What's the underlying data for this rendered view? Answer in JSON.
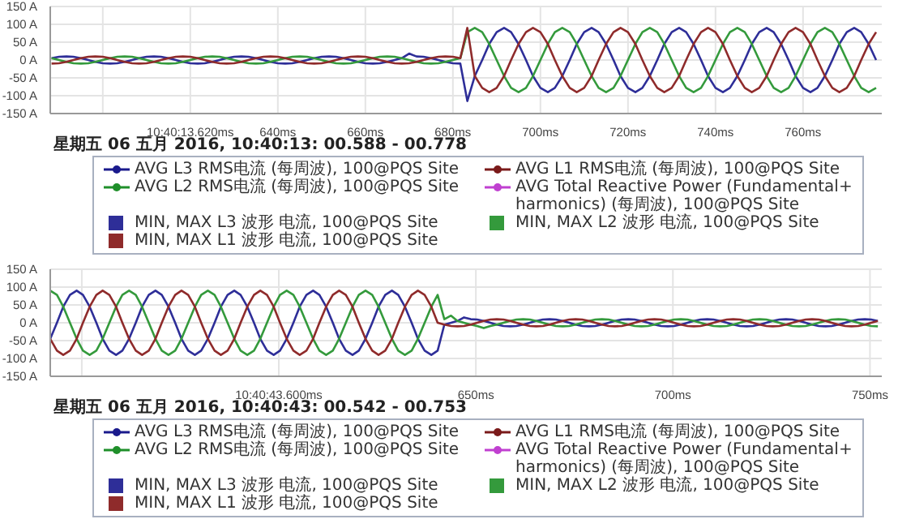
{
  "chart_data": [
    {
      "type": "line",
      "subtitle": "星期五 06 五月 2016, 10:40:13: 00.588 - 00.778",
      "xlim": [
        588,
        778
      ],
      "xticks": [
        {
          "value": 600,
          "label": null
        },
        {
          "value": 620,
          "label": "10:40:13.620ms"
        },
        {
          "value": 640,
          "label": "640ms"
        },
        {
          "value": 660,
          "label": "660ms"
        },
        {
          "value": 680,
          "label": "680ms"
        },
        {
          "value": 700,
          "label": "700ms"
        },
        {
          "value": 720,
          "label": "720ms"
        },
        {
          "value": 740,
          "label": "740ms"
        },
        {
          "value": 760,
          "label": "760ms"
        }
      ],
      "ylim": [
        -150,
        150
      ],
      "yticks": [
        {
          "value": -150,
          "label": "-150 A"
        },
        {
          "value": -100,
          "label": "-100 A"
        },
        {
          "value": -50,
          "label": "-50 A"
        },
        {
          "value": 0,
          "label": "0 A"
        },
        {
          "value": 50,
          "label": "50 A"
        },
        {
          "value": 100,
          "label": "100 A"
        },
        {
          "value": 150,
          "label": "150 A"
        }
      ],
      "grid": true,
      "legend": "bottom",
      "x": [
        588.3,
        590,
        591.7,
        593.3,
        595,
        596.7,
        598.3,
        600,
        601.7,
        603.3,
        605,
        606.7,
        608.3,
        610,
        611.7,
        613.3,
        615,
        616.7,
        618.3,
        620,
        621.7,
        623.3,
        625,
        626.7,
        628.3,
        630,
        631.7,
        633.3,
        635,
        636.7,
        638.3,
        640,
        641.7,
        643.3,
        645,
        646.7,
        648.3,
        650,
        651.7,
        653.3,
        655,
        656.7,
        658.3,
        660,
        661.7,
        663.3,
        665,
        666.7,
        668.3,
        670,
        671.7,
        673.3,
        675,
        676.7,
        678.3,
        680,
        681.7,
        683.3,
        685,
        686.7,
        688.3,
        690,
        691.7,
        693.3,
        695,
        696.7,
        698.3,
        700,
        701.7,
        703.3,
        705,
        706.7,
        708.3,
        710,
        711.7,
        713.3,
        715,
        716.7,
        718.3,
        720,
        721.7,
        723.3,
        725,
        726.7,
        728.3,
        730,
        731.7,
        733.3,
        735,
        736.7,
        738.3,
        740,
        741.7,
        743.3,
        745,
        746.7,
        748.3,
        750,
        751.7,
        753.3,
        755,
        756.7,
        758.3,
        760,
        761.7,
        763.3,
        765,
        766.7,
        768.3,
        770,
        771.7,
        773.3,
        775,
        776.7
      ],
      "series": [
        {
          "name": "AVG L3 RMS电流 (每周波), 100@PQS Site",
          "color": "#1a1a8c",
          "marker": "circle",
          "values": [
            null,
            null,
            null,
            null,
            null,
            null,
            null,
            null,
            null,
            null,
            null,
            null,
            null,
            null,
            null,
            null,
            null,
            null,
            null,
            null,
            null,
            null,
            null,
            null,
            null,
            null,
            null,
            null,
            null,
            null,
            null,
            null,
            null,
            null,
            null,
            null,
            null,
            null,
            null,
            null,
            null,
            null,
            null,
            null,
            null,
            null,
            null,
            null,
            null,
            null,
            null,
            null,
            null,
            null,
            null,
            null,
            null,
            null,
            null,
            null,
            null,
            null,
            null,
            null,
            null,
            null,
            null,
            null,
            null,
            null,
            null,
            null,
            null,
            null,
            null,
            null,
            null,
            null,
            null,
            null,
            null,
            null,
            null,
            null,
            null,
            null,
            null,
            null,
            null,
            null,
            null,
            null,
            null,
            null,
            null,
            null,
            null,
            null,
            null,
            null,
            null,
            null,
            null,
            null,
            null,
            null,
            null,
            null,
            null,
            null,
            null,
            null,
            null,
            null
          ]
        },
        {
          "name": "AVG L1 RMS电流 (每周波), 100@PQS Site",
          "color": "#7a1a1a",
          "marker": "circle",
          "values": [
            null,
            null,
            null,
            null,
            null,
            null,
            null,
            null,
            null,
            null,
            null,
            null,
            null,
            null,
            null,
            null,
            null,
            null,
            null,
            null,
            null,
            null,
            null,
            null,
            null,
            null,
            null,
            null,
            null,
            null,
            null,
            null,
            null,
            null,
            null,
            null,
            null,
            null,
            null,
            null,
            null,
            null,
            null,
            null,
            null,
            null,
            null,
            null,
            null,
            null,
            null,
            null,
            null,
            null,
            null,
            null,
            null,
            null,
            null,
            null,
            null,
            null,
            null,
            null,
            null,
            null,
            null,
            null,
            null,
            null,
            null,
            null,
            null,
            null,
            null,
            null,
            null,
            null,
            null,
            null,
            null,
            null,
            null,
            null,
            null,
            null,
            null,
            null,
            null,
            null,
            null,
            null,
            null,
            null,
            null,
            null,
            null,
            null,
            null,
            null,
            null,
            null,
            null,
            null,
            null,
            null,
            null,
            null,
            null,
            null,
            null,
            null,
            null,
            null
          ]
        },
        {
          "name": "AVG L2 RMS电流 (每周波), 100@PQS Site",
          "color": "#1f8f2a",
          "marker": "circle",
          "values": [
            null,
            null,
            null,
            null,
            null,
            null,
            null,
            null,
            null,
            null,
            null,
            null,
            null,
            null,
            null,
            null,
            null,
            null,
            null,
            null,
            null,
            null,
            null,
            null,
            null,
            null,
            null,
            null,
            null,
            null,
            null,
            null,
            null,
            null,
            null,
            null,
            null,
            null,
            null,
            null,
            null,
            null,
            null,
            null,
            null,
            null,
            null,
            null,
            null,
            null,
            null,
            null,
            null,
            null,
            null,
            null,
            null,
            null,
            null,
            null,
            null,
            null,
            null,
            null,
            null,
            null,
            null,
            null,
            null,
            null,
            null,
            null,
            null,
            null,
            null,
            null,
            null,
            null,
            null,
            null,
            null,
            null,
            null,
            null,
            null,
            null,
            null,
            null,
            null,
            null,
            null,
            null,
            null,
            null,
            null,
            null,
            null,
            null,
            null,
            null,
            null,
            null,
            null,
            null,
            null,
            null,
            null,
            null,
            null,
            null,
            null,
            null,
            null,
            null
          ]
        },
        {
          "name": "AVG Total Reactive Power (Fundamental+ harmonics) (每周波), 100@PQS Site",
          "color": "#c040d0",
          "marker": "circle",
          "values": [
            null,
            null,
            null,
            null,
            null,
            null,
            null,
            null,
            null,
            null,
            null,
            null,
            null,
            null,
            null,
            null,
            null,
            null,
            null,
            null,
            null,
            null,
            null,
            null,
            null,
            null,
            null,
            null,
            null,
            null,
            null,
            null,
            null,
            null,
            null,
            null,
            null,
            null,
            null,
            null,
            null,
            null,
            null,
            null,
            null,
            null,
            null,
            null,
            null,
            null,
            null,
            null,
            null,
            null,
            null,
            null,
            null,
            null,
            null,
            null,
            null,
            null,
            null,
            null,
            null,
            null,
            null,
            null,
            null,
            null,
            null,
            null,
            null,
            null,
            null,
            null,
            null,
            null,
            null,
            null,
            null,
            null,
            null,
            null,
            null,
            null,
            null,
            null,
            null,
            null,
            null,
            null,
            null,
            null,
            null,
            null,
            null,
            null,
            null,
            null,
            null,
            null,
            null,
            null,
            null,
            null,
            null,
            null,
            null,
            null,
            null,
            null,
            null,
            null
          ]
        },
        {
          "name": "MIN, MAX L3 波形 电流, 100@PQS Site",
          "color": "#2e2e98",
          "values": [
            5,
            9,
            10,
            9,
            5,
            0,
            -5,
            -9,
            -10,
            -9,
            -5,
            0,
            5,
            9,
            10,
            9,
            5,
            0,
            -5,
            -9,
            -10,
            -9,
            -5,
            0,
            5,
            9,
            10,
            9,
            5,
            0,
            -5,
            -9,
            -10,
            -9,
            -5,
            0,
            5,
            9,
            10,
            9,
            5,
            0,
            -5,
            -9,
            -10,
            -9,
            -5,
            0,
            5,
            18,
            10,
            9,
            5,
            0,
            -5,
            -9,
            -10,
            -115,
            -45,
            0,
            45,
            78,
            90,
            78,
            45,
            0,
            -45,
            -78,
            -90,
            -78,
            -45,
            0,
            45,
            78,
            90,
            78,
            45,
            0,
            -45,
            -78,
            -90,
            -78,
            -45,
            0,
            45,
            78,
            90,
            78,
            45,
            0,
            -45,
            -78,
            -90,
            -78,
            -45,
            0,
            45,
            78,
            90,
            78,
            45,
            0,
            -45,
            -78,
            -90,
            -78,
            -45,
            0,
            45,
            78,
            90,
            78,
            45,
            0
          ]
        },
        {
          "name": "MIN, MAX L2 波形 电流, 100@PQS Site",
          "color": "#349a3c",
          "values": [
            5,
            0,
            -5,
            -9,
            -10,
            -9,
            -5,
            0,
            5,
            9,
            10,
            9,
            5,
            0,
            -5,
            -9,
            -10,
            -9,
            -5,
            0,
            5,
            9,
            10,
            9,
            5,
            0,
            -5,
            -9,
            -10,
            -9,
            -5,
            0,
            5,
            9,
            10,
            9,
            5,
            0,
            -5,
            -9,
            -10,
            -9,
            -5,
            0,
            5,
            9,
            10,
            9,
            5,
            0,
            -5,
            -9,
            -10,
            -9,
            -5,
            0,
            5,
            78,
            90,
            78,
            45,
            0,
            -45,
            -78,
            -90,
            -78,
            -45,
            0,
            45,
            78,
            90,
            78,
            45,
            0,
            -45,
            -78,
            -90,
            -78,
            -45,
            0,
            45,
            78,
            90,
            78,
            45,
            0,
            -45,
            -78,
            -90,
            -78,
            -45,
            0,
            45,
            78,
            90,
            78,
            45,
            0,
            -45,
            -78,
            -90,
            -78,
            -45,
            0,
            45,
            78,
            90,
            78,
            45,
            0,
            -45,
            -78,
            -90,
            -78
          ]
        },
        {
          "name": "MIN, MAX L1 波形 电流, 100@PQS Site",
          "color": "#8f2b2b",
          "values": [
            -10,
            -9,
            -5,
            0,
            5,
            9,
            10,
            9,
            5,
            0,
            -5,
            -9,
            -10,
            -9,
            -5,
            0,
            5,
            9,
            10,
            9,
            5,
            0,
            -5,
            -9,
            -10,
            -9,
            -5,
            0,
            5,
            9,
            10,
            9,
            5,
            0,
            -5,
            -9,
            -10,
            -9,
            -5,
            0,
            5,
            9,
            10,
            9,
            5,
            0,
            -5,
            -9,
            -10,
            -9,
            -5,
            0,
            5,
            9,
            10,
            9,
            5,
            90,
            -45,
            -78,
            -90,
            -78,
            -45,
            0,
            45,
            78,
            90,
            78,
            45,
            0,
            -45,
            -78,
            -90,
            -78,
            -45,
            0,
            45,
            78,
            90,
            78,
            45,
            0,
            -45,
            -78,
            -90,
            -78,
            -45,
            0,
            45,
            78,
            90,
            78,
            45,
            0,
            -45,
            -78,
            -90,
            -78,
            -45,
            0,
            45,
            78,
            90,
            78,
            45,
            0,
            -45,
            -78,
            -90,
            -78,
            -45,
            0,
            45,
            78
          ]
        }
      ]
    },
    {
      "type": "line",
      "subtitle": "星期五 06 五月 2016, 10:40:43: 00.542 - 00.753",
      "xlim": [
        542,
        753
      ],
      "xticks": [
        {
          "value": 550,
          "label": null
        },
        {
          "value": 600,
          "label": "10:40:43.600ms"
        },
        {
          "value": 650,
          "label": "650ms"
        },
        {
          "value": 700,
          "label": "700ms"
        },
        {
          "value": 750,
          "label": "750ms"
        }
      ],
      "ylim": [
        -150,
        150
      ],
      "yticks": [
        {
          "value": -150,
          "label": "-150 A"
        },
        {
          "value": -100,
          "label": "-100 A"
        },
        {
          "value": -50,
          "label": "-50 A"
        },
        {
          "value": 0,
          "label": "0 A"
        },
        {
          "value": 50,
          "label": "50 A"
        },
        {
          "value": 100,
          "label": "100 A"
        },
        {
          "value": 150,
          "label": "150 A"
        }
      ],
      "grid": true,
      "legend": "bottom",
      "x": [
        542,
        543.7,
        545.3,
        547,
        548.7,
        550.3,
        552,
        553.7,
        555.3,
        557,
        558.7,
        560.3,
        562,
        563.7,
        565.3,
        567,
        568.7,
        570.3,
        572,
        573.7,
        575.3,
        577,
        578.7,
        580.3,
        582,
        583.7,
        585.3,
        587,
        588.7,
        590.3,
        592,
        593.7,
        595.3,
        597,
        598.7,
        600.3,
        602,
        603.7,
        605.3,
        607,
        608.7,
        610.3,
        612,
        613.7,
        615.3,
        617,
        618.7,
        620.3,
        622,
        623.7,
        625.3,
        627,
        628.7,
        630.3,
        632,
        633.7,
        635.3,
        637,
        638.7,
        640.3,
        642,
        643.7,
        645.3,
        647,
        648.7,
        650.3,
        652,
        653.7,
        655.3,
        657,
        658.7,
        660.3,
        662,
        663.7,
        665.3,
        667,
        668.7,
        670.3,
        672,
        673.7,
        675.3,
        677,
        678.7,
        680.3,
        682,
        683.7,
        685.3,
        687,
        688.7,
        690.3,
        692,
        693.7,
        695.3,
        697,
        698.7,
        700.3,
        702,
        703.7,
        705.3,
        707,
        708.7,
        710.3,
        712,
        713.7,
        715.3,
        717,
        718.7,
        720.3,
        722,
        723.7,
        725.3,
        727,
        728.7,
        730.3,
        732,
        733.7,
        735.3,
        737,
        738.7,
        740.3,
        742,
        743.7,
        745.3,
        747,
        748.7,
        750.3,
        752
      ],
      "series": [
        {
          "name": "AVG L3 RMS电流 (每周波), 100@PQS Site",
          "color": "#1a1a8c",
          "marker": "circle",
          "values": [
            null,
            null,
            null,
            null,
            null,
            null,
            null,
            null,
            null,
            null,
            null,
            null,
            null,
            null,
            null,
            null,
            null,
            null,
            null,
            null,
            null,
            null,
            null,
            null,
            null,
            null,
            null,
            null,
            null,
            null,
            null,
            null,
            null,
            null,
            null,
            null,
            null,
            null,
            null,
            null,
            null,
            null,
            null,
            null,
            null,
            null,
            null,
            null,
            null,
            null,
            null,
            null,
            null,
            null,
            null,
            null,
            null,
            null,
            null,
            null,
            null,
            null,
            null,
            null,
            null,
            null,
            null,
            null,
            null,
            null,
            null,
            null,
            null,
            null,
            null,
            null,
            null,
            null,
            null,
            null,
            null,
            null,
            null,
            null,
            null,
            null,
            null,
            null,
            null,
            null,
            null,
            null,
            null,
            null,
            null,
            null,
            null,
            null,
            null,
            null,
            null,
            null,
            null,
            null,
            null,
            null,
            null,
            null,
            null,
            null,
            null,
            null,
            null,
            null,
            null,
            null,
            null,
            null,
            null,
            null,
            null,
            null,
            null,
            null,
            null,
            null,
            null
          ]
        },
        {
          "name": "AVG L1 RMS电流 (每周波), 100@PQS Site",
          "color": "#7a1a1a",
          "marker": "circle",
          "values": [
            null,
            null,
            null,
            null,
            null,
            null,
            null,
            null,
            null,
            null,
            null,
            null,
            null,
            null,
            null,
            null,
            null,
            null,
            null,
            null,
            null,
            null,
            null,
            null,
            null,
            null,
            null,
            null,
            null,
            null,
            null,
            null,
            null,
            null,
            null,
            null,
            null,
            null,
            null,
            null,
            null,
            null,
            null,
            null,
            null,
            null,
            null,
            null,
            null,
            null,
            null,
            null,
            null,
            null,
            null,
            null,
            null,
            null,
            null,
            null,
            null,
            null,
            null,
            null,
            null,
            null,
            null,
            null,
            null,
            null,
            null,
            null,
            null,
            null,
            null,
            null,
            null,
            null,
            null,
            null,
            null,
            null,
            null,
            null,
            null,
            null,
            null,
            null,
            null,
            null,
            null,
            null,
            null,
            null,
            null,
            null,
            null,
            null,
            null,
            null,
            null,
            null,
            null,
            null,
            null,
            null,
            null,
            null,
            null,
            null,
            null,
            null,
            null,
            null,
            null,
            null,
            null,
            null,
            null,
            null,
            null,
            null,
            null,
            null,
            null,
            null,
            null
          ]
        },
        {
          "name": "AVG L2 RMS电流 (每周波), 100@PQS Site",
          "color": "#1f8f2a",
          "marker": "circle",
          "values": [
            null,
            null,
            null,
            null,
            null,
            null,
            null,
            null,
            null,
            null,
            null,
            null,
            null,
            null,
            null,
            null,
            null,
            null,
            null,
            null,
            null,
            null,
            null,
            null,
            null,
            null,
            null,
            null,
            null,
            null,
            null,
            null,
            null,
            null,
            null,
            null,
            null,
            null,
            null,
            null,
            null,
            null,
            null,
            null,
            null,
            null,
            null,
            null,
            null,
            null,
            null,
            null,
            null,
            null,
            null,
            null,
            null,
            null,
            null,
            null,
            null,
            null,
            null,
            null,
            null,
            null,
            null,
            null,
            null,
            null,
            null,
            null,
            null,
            null,
            null,
            null,
            null,
            null,
            null,
            null,
            null,
            null,
            null,
            null,
            null,
            null,
            null,
            null,
            null,
            null,
            null,
            null,
            null,
            null,
            null,
            null,
            null,
            null,
            null,
            null,
            null,
            null,
            null,
            null,
            null,
            null,
            null,
            null,
            null,
            null,
            null,
            null,
            null,
            null,
            null,
            null,
            null,
            null,
            null,
            null,
            null,
            null,
            null,
            null,
            null,
            null,
            null
          ]
        },
        {
          "name": "AVG Total Reactive Power (Fundamental+ harmonics) (每周波), 100@PQS Site",
          "color": "#c040d0",
          "marker": "circle",
          "values": [
            null,
            null,
            null,
            null,
            null,
            null,
            null,
            null,
            null,
            null,
            null,
            null,
            null,
            null,
            null,
            null,
            null,
            null,
            null,
            null,
            null,
            null,
            null,
            null,
            null,
            null,
            null,
            null,
            null,
            null,
            null,
            null,
            null,
            null,
            null,
            null,
            null,
            null,
            null,
            null,
            null,
            null,
            null,
            null,
            null,
            null,
            null,
            null,
            null,
            null,
            null,
            null,
            null,
            null,
            null,
            null,
            null,
            null,
            null,
            null,
            null,
            null,
            null,
            null,
            null,
            null,
            null,
            null,
            null,
            null,
            null,
            null,
            null,
            null,
            null,
            null,
            null,
            null,
            null,
            null,
            null,
            null,
            null,
            null,
            null,
            null,
            null,
            null,
            null,
            null,
            null,
            null,
            null,
            null,
            null,
            null,
            null,
            null,
            null,
            null,
            null,
            null,
            null,
            null,
            null,
            null,
            null,
            null,
            null,
            null,
            null,
            null,
            null,
            null,
            null,
            null,
            null,
            null,
            null,
            null,
            null,
            null,
            null,
            null,
            null,
            null,
            null
          ]
        },
        {
          "name": "MIN, MAX L3 波形 电流, 100@PQS Site",
          "color": "#2e2e98",
          "values": [
            -45,
            0,
            45,
            78,
            90,
            78,
            45,
            0,
            -45,
            -78,
            -90,
            -78,
            -45,
            0,
            45,
            78,
            90,
            78,
            45,
            0,
            -45,
            -78,
            -90,
            -78,
            -45,
            0,
            45,
            78,
            90,
            78,
            45,
            0,
            -45,
            -78,
            -90,
            -78,
            -45,
            0,
            45,
            78,
            90,
            78,
            45,
            0,
            -45,
            -78,
            -90,
            -78,
            -45,
            0,
            45,
            78,
            90,
            78,
            45,
            0,
            -45,
            -78,
            -90,
            -78,
            -5,
            0,
            5,
            15,
            10,
            9,
            5,
            0,
            -5,
            -9,
            -10,
            -9,
            -5,
            0,
            5,
            9,
            10,
            9,
            5,
            0,
            -5,
            -9,
            -10,
            -9,
            -5,
            0,
            5,
            9,
            10,
            9,
            5,
            0,
            -5,
            -9,
            -10,
            -9,
            -5,
            0,
            5,
            9,
            10,
            9,
            5,
            0,
            -5,
            -9,
            -10,
            -9,
            -5,
            0,
            5,
            9,
            10,
            9,
            5,
            0,
            -5,
            -9,
            -10,
            -9,
            -5,
            0,
            5,
            9,
            10,
            9,
            5
          ]
        },
        {
          "name": "MIN, MAX L2 波形 电流, 100@PQS Site",
          "color": "#349a3c",
          "values": [
            90,
            78,
            45,
            0,
            -45,
            -78,
            -90,
            -78,
            -45,
            0,
            45,
            78,
            90,
            78,
            45,
            0,
            -45,
            -78,
            -90,
            -78,
            -45,
            0,
            45,
            78,
            90,
            78,
            45,
            0,
            -45,
            -78,
            -90,
            -78,
            -45,
            0,
            45,
            78,
            90,
            78,
            45,
            0,
            -45,
            -78,
            -90,
            -78,
            -45,
            0,
            45,
            78,
            90,
            78,
            45,
            0,
            -45,
            -78,
            -90,
            -78,
            -45,
            0,
            45,
            78,
            10,
            20,
            5,
            0,
            -5,
            -9,
            -15,
            -9,
            -5,
            0,
            5,
            9,
            10,
            9,
            5,
            0,
            -5,
            -9,
            -10,
            -9,
            -5,
            0,
            5,
            9,
            10,
            9,
            5,
            0,
            -5,
            -9,
            -10,
            -9,
            -5,
            0,
            5,
            9,
            10,
            9,
            5,
            0,
            -5,
            -9,
            -10,
            -9,
            -5,
            0,
            5,
            9,
            10,
            9,
            5,
            0,
            -5,
            -9,
            -10,
            -9,
            -5,
            0,
            5,
            9,
            10,
            9,
            5,
            0,
            -5,
            -9,
            -10
          ]
        },
        {
          "name": "MIN, MAX L1 波形 电流, 100@PQS Site",
          "color": "#8f2b2b",
          "values": [
            -45,
            -78,
            -90,
            -78,
            -45,
            0,
            45,
            78,
            90,
            78,
            45,
            0,
            -45,
            -78,
            -90,
            -78,
            -45,
            0,
            45,
            78,
            90,
            78,
            45,
            0,
            -45,
            -78,
            -90,
            -78,
            -45,
            0,
            45,
            78,
            90,
            78,
            45,
            0,
            -45,
            -78,
            -90,
            -78,
            -45,
            0,
            45,
            78,
            90,
            78,
            45,
            0,
            -45,
            -78,
            -90,
            -78,
            -45,
            0,
            45,
            78,
            90,
            78,
            45,
            0,
            -5,
            -9,
            -10,
            -9,
            -5,
            0,
            5,
            9,
            10,
            9,
            5,
            0,
            -5,
            -9,
            -10,
            -9,
            -5,
            0,
            5,
            9,
            10,
            9,
            5,
            0,
            -5,
            -9,
            -10,
            -9,
            -5,
            0,
            5,
            9,
            10,
            9,
            5,
            0,
            -5,
            -9,
            -10,
            -9,
            -5,
            0,
            5,
            9,
            10,
            9,
            5,
            0,
            -5,
            -9,
            -10,
            -9,
            -5,
            0,
            5,
            9,
            10,
            9,
            5,
            0,
            -5,
            -9,
            -10,
            -9,
            -5,
            0,
            5
          ]
        }
      ]
    }
  ]
}
